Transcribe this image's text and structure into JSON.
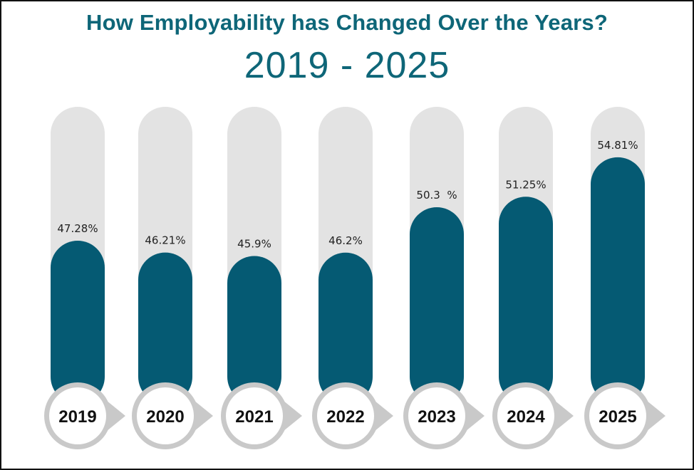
{
  "title": "How Employability has Changed Over the Years?",
  "subtitle": "2019 - 2025",
  "colors": {
    "bar_fill": "#055a73",
    "track": "#e3e3e3",
    "title": "#0e6678",
    "year_circle_border": "#c9c9c9"
  },
  "chart_data": {
    "type": "bar",
    "title": "How Employability has Changed Over the Years?",
    "subtitle": "2019 - 2025",
    "categories": [
      "2019",
      "2020",
      "2021",
      "2022",
      "2023",
      "2024",
      "2025"
    ],
    "values": [
      47.28,
      46.21,
      45.9,
      46.2,
      50.3,
      51.25,
      54.81
    ],
    "value_labels": [
      "47.28%",
      "46.21%",
      "45.9%",
      "46.2%",
      "50.3  %",
      "51.25%",
      "54.81%"
    ],
    "unit": "%",
    "grid": false,
    "legend": "none"
  }
}
